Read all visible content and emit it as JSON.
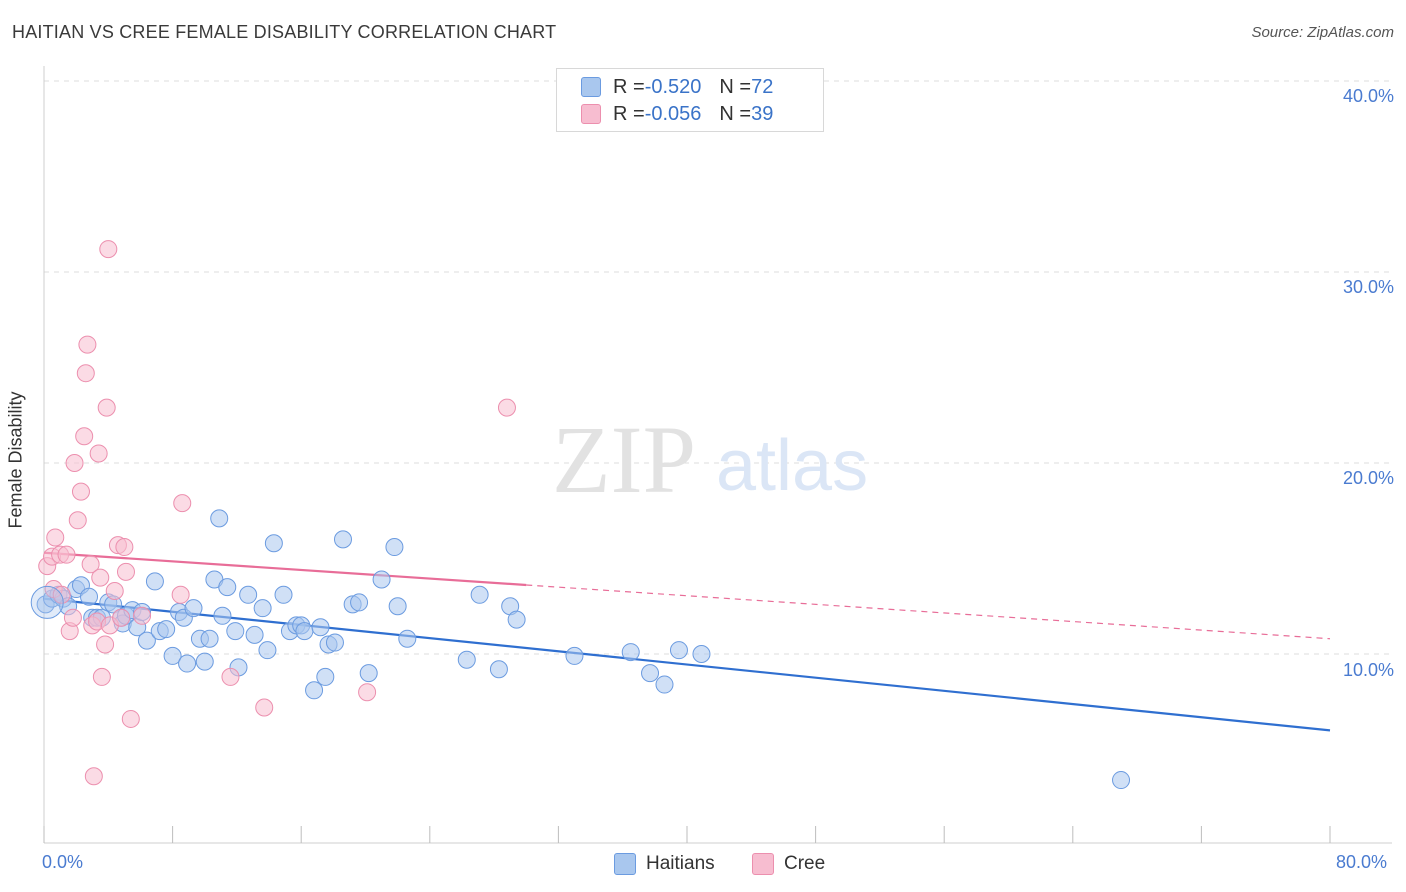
{
  "header": {
    "title": "HAITIAN VS CREE FEMALE DISABILITY CORRELATION CHART",
    "source": "Source: ZipAtlas.com"
  },
  "watermark": {
    "zip": "ZIP",
    "atlas": "atlas"
  },
  "legend": {
    "rows": [
      {
        "r_label": "R = ",
        "r_value": "-0.520",
        "n_label": "N = ",
        "n_value": "72"
      },
      {
        "r_label": "R = ",
        "r_value": "-0.056",
        "n_label": "N = ",
        "n_value": "39"
      }
    ],
    "bottom": [
      "Haitians",
      "Cree"
    ]
  },
  "axes": {
    "y_title": "Female Disability",
    "y_ticks": [
      "40.0%",
      "30.0%",
      "20.0%",
      "10.0%"
    ],
    "x_min_label": "0.0%",
    "x_max_label": "80.0%"
  },
  "colors": {
    "haitians_fill": "#a9c7ee",
    "haitians_stroke": "#6b9be0",
    "haitians_line": "#2f6fd0",
    "cree_fill": "#f7bdd0",
    "cree_stroke": "#ec8fae",
    "cree_line": "#e86d98",
    "grid": "#dddddd",
    "tick_label": "#4a7bd0"
  },
  "chart_data": {
    "type": "scatter",
    "title": "HAITIAN VS CREE FEMALE DISABILITY CORRELATION CHART",
    "xlabel": "",
    "ylabel": "Female Disability",
    "xlim": [
      0,
      80
    ],
    "ylim": [
      0,
      42
    ],
    "y_ticks": [
      10,
      20,
      30,
      40
    ],
    "grid": true,
    "legend_placement": "top-center",
    "series": [
      {
        "name": "Haitians",
        "r": -0.52,
        "n": 72,
        "trend": {
          "x": [
            0,
            80
          ],
          "y": [
            12.9,
            6.0
          ],
          "solid_to": 80
        },
        "points": [
          [
            0.1,
            12.6
          ],
          [
            0.5,
            12.9
          ],
          [
            0.9,
            13.1
          ],
          [
            1.2,
            12.9
          ],
          [
            1.5,
            12.5
          ],
          [
            2.0,
            13.4
          ],
          [
            2.3,
            13.6
          ],
          [
            2.8,
            13.0
          ],
          [
            3.0,
            11.9
          ],
          [
            3.3,
            11.9
          ],
          [
            3.6,
            11.9
          ],
          [
            4.0,
            12.7
          ],
          [
            4.3,
            12.6
          ],
          [
            4.8,
            11.9
          ],
          [
            4.9,
            11.6
          ],
          [
            5.1,
            12.0
          ],
          [
            5.5,
            12.3
          ],
          [
            5.8,
            11.4
          ],
          [
            6.1,
            12.2
          ],
          [
            6.4,
            10.7
          ],
          [
            6.9,
            13.8
          ],
          [
            7.2,
            11.2
          ],
          [
            7.6,
            11.3
          ],
          [
            8.0,
            9.9
          ],
          [
            8.4,
            12.2
          ],
          [
            8.7,
            11.9
          ],
          [
            8.9,
            9.5
          ],
          [
            9.3,
            12.4
          ],
          [
            9.7,
            10.8
          ],
          [
            10.0,
            9.6
          ],
          [
            10.3,
            10.8
          ],
          [
            10.6,
            13.9
          ],
          [
            10.9,
            17.1
          ],
          [
            11.1,
            12.0
          ],
          [
            11.4,
            13.5
          ],
          [
            11.9,
            11.2
          ],
          [
            12.1,
            9.3
          ],
          [
            12.7,
            13.1
          ],
          [
            13.1,
            11.0
          ],
          [
            13.6,
            12.4
          ],
          [
            13.9,
            10.2
          ],
          [
            14.3,
            15.8
          ],
          [
            14.9,
            13.1
          ],
          [
            15.3,
            11.2
          ],
          [
            15.7,
            11.5
          ],
          [
            16.0,
            11.5
          ],
          [
            16.2,
            11.2
          ],
          [
            16.8,
            8.1
          ],
          [
            17.2,
            11.4
          ],
          [
            17.5,
            8.8
          ],
          [
            17.7,
            10.5
          ],
          [
            18.1,
            10.6
          ],
          [
            18.6,
            16.0
          ],
          [
            19.2,
            12.6
          ],
          [
            19.6,
            12.7
          ],
          [
            20.2,
            9.0
          ],
          [
            21.0,
            13.9
          ],
          [
            21.8,
            15.6
          ],
          [
            22.0,
            12.5
          ],
          [
            22.6,
            10.8
          ],
          [
            26.3,
            9.7
          ],
          [
            27.1,
            13.1
          ],
          [
            28.3,
            9.2
          ],
          [
            29.0,
            12.5
          ],
          [
            29.4,
            11.8
          ],
          [
            33.0,
            9.9
          ],
          [
            36.5,
            10.1
          ],
          [
            37.7,
            9.0
          ],
          [
            38.6,
            8.4
          ],
          [
            39.5,
            10.2
          ],
          [
            40.9,
            10.0
          ],
          [
            67.0,
            3.4
          ]
        ]
      },
      {
        "name": "Cree",
        "r": -0.056,
        "n": 39,
        "trend": {
          "x": [
            0,
            80
          ],
          "y": [
            15.3,
            10.8
          ],
          "solid_to": 30
        },
        "points": [
          [
            0.2,
            14.6
          ],
          [
            0.5,
            15.1
          ],
          [
            0.6,
            13.4
          ],
          [
            0.7,
            16.1
          ],
          [
            1.0,
            15.2
          ],
          [
            1.1,
            13.1
          ],
          [
            1.4,
            15.2
          ],
          [
            1.6,
            11.2
          ],
          [
            1.8,
            11.9
          ],
          [
            1.9,
            20.0
          ],
          [
            2.1,
            17.0
          ],
          [
            2.3,
            18.5
          ],
          [
            2.5,
            21.4
          ],
          [
            2.6,
            24.7
          ],
          [
            2.7,
            26.2
          ],
          [
            2.9,
            14.7
          ],
          [
            3.0,
            11.5
          ],
          [
            3.1,
            3.6
          ],
          [
            3.3,
            11.7
          ],
          [
            3.4,
            20.5
          ],
          [
            3.5,
            14.0
          ],
          [
            3.6,
            8.8
          ],
          [
            3.8,
            10.5
          ],
          [
            3.9,
            22.9
          ],
          [
            4.0,
            31.2
          ],
          [
            4.1,
            11.5
          ],
          [
            4.4,
            13.3
          ],
          [
            4.6,
            15.7
          ],
          [
            4.8,
            11.9
          ],
          [
            5.0,
            15.6
          ],
          [
            5.1,
            14.3
          ],
          [
            5.4,
            6.6
          ],
          [
            6.1,
            12.0
          ],
          [
            8.5,
            13.1
          ],
          [
            8.6,
            17.9
          ],
          [
            11.6,
            8.8
          ],
          [
            13.7,
            7.2
          ],
          [
            20.1,
            8.0
          ],
          [
            28.8,
            22.9
          ]
        ]
      }
    ]
  }
}
